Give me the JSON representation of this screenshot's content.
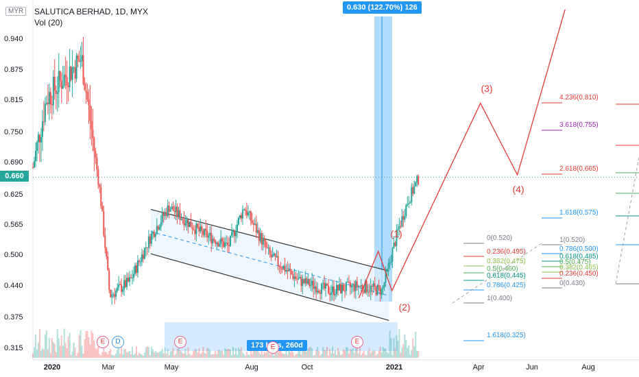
{
  "header": {
    "title": "SALUTICA BERHAD, 1D, MYX",
    "volume_label": "Vol (20)",
    "currency": "MYR"
  },
  "last_price_label": "0.660",
  "colors": {
    "up": "#26a69a",
    "down": "#ef5350",
    "measure": "#2196f3",
    "wave": "#e53935"
  },
  "measure_tag": "0.630 (122.70%) 126",
  "range_tag": "173 bars, 260d",
  "waves": [
    {
      "label": "(1)",
      "x": "2020-12-21",
      "y": 0.505
    },
    {
      "label": "(2)",
      "x": "2021-01-04",
      "y": 0.385
    },
    {
      "label": "(3)",
      "x": "2021-04-05",
      "y": 0.825
    },
    {
      "label": "(4)",
      "x": "2021-05-13",
      "y": 0.615
    }
  ],
  "fib_labels": [
    {
      "text": "4.236(0.810)",
      "color": "#e53935"
    },
    {
      "text": "3.618(0.755)",
      "color": "#9c27b0"
    },
    {
      "text": "2.618(0.665)",
      "color": "#e53935"
    },
    {
      "text": "1.618(0.575)",
      "color": "#2196f3"
    },
    {
      "text": "1.618(0.325)",
      "color": "#2196f3"
    },
    {
      "text": "0(0.520)",
      "color": "#787b86"
    },
    {
      "text": "0.236(0.495)",
      "color": "#e53935"
    },
    {
      "text": "0.382(0.475)",
      "color": "#8bc34a"
    },
    {
      "text": "0.5(0.460)",
      "color": "#4caf50"
    },
    {
      "text": "0.618(0.445)",
      "color": "#009688"
    },
    {
      "text": "0.786(0.425)",
      "color": "#2196f3"
    },
    {
      "text": "1(0.400)",
      "color": "#787b86"
    },
    {
      "text": "1(0.520)",
      "color": "#787b86"
    },
    {
      "text": "0.786(0.500)",
      "color": "#2196f3"
    },
    {
      "text": "0.618(0.485)",
      "color": "#009688"
    },
    {
      "text": "0.5(0.475)",
      "color": "#4caf50"
    },
    {
      "text": "0.382(0.465)",
      "color": "#8bc34a"
    },
    {
      "text": "0.236(0.450)",
      "color": "#e53935"
    },
    {
      "text": "0(0.430)",
      "color": "#787b86"
    }
  ],
  "events": [
    {
      "label": "E",
      "kind": "e",
      "x": "2020-02-20"
    },
    {
      "label": "D",
      "kind": "d",
      "x": "2020-03-05"
    },
    {
      "label": "E",
      "kind": "e",
      "x": "2020-05-20"
    },
    {
      "label": "E",
      "kind": "e",
      "x": "2020-09-15"
    },
    {
      "label": "E",
      "kind": "e",
      "x": "2020-11-20"
    }
  ],
  "chart_data": {
    "type": "candlestick",
    "title": "SALUTICA BERHAD, 1D, MYX",
    "y_ticks": [
      "0.940",
      "0.875",
      "0.815",
      "0.750",
      "0.690",
      "0.625",
      "0.565",
      "0.500",
      "0.440",
      "0.375",
      "0.315"
    ],
    "x_ticks": [
      "2020",
      "Mar",
      "May",
      "Aug",
      "Oct",
      "2021",
      "Apr",
      "Jun",
      "Aug"
    ],
    "ylim": [
      0.29,
      1.0
    ],
    "last_price": 0.66,
    "price_path": [
      {
        "x": "2020-01-01",
        "y": 0.68
      },
      {
        "x": "2020-01-15",
        "y": 0.82
      },
      {
        "x": "2020-02-01",
        "y": 0.86
      },
      {
        "x": "2020-02-20",
        "y": 0.9
      },
      {
        "x": "2020-03-01",
        "y": 0.76
      },
      {
        "x": "2020-03-10",
        "y": 0.63
      },
      {
        "x": "2020-03-20",
        "y": 0.42
      },
      {
        "x": "2020-04-10",
        "y": 0.45
      },
      {
        "x": "2020-05-01",
        "y": 0.54
      },
      {
        "x": "2020-05-20",
        "y": 0.6
      },
      {
        "x": "2020-06-20",
        "y": 0.55
      },
      {
        "x": "2020-07-20",
        "y": 0.52
      },
      {
        "x": "2020-08-05",
        "y": 0.6
      },
      {
        "x": "2020-09-01",
        "y": 0.5
      },
      {
        "x": "2020-10-01",
        "y": 0.45
      },
      {
        "x": "2020-11-01",
        "y": 0.43
      },
      {
        "x": "2020-12-01",
        "y": 0.44
      },
      {
        "x": "2020-12-25",
        "y": 0.43
      },
      {
        "x": "2021-01-10",
        "y": 0.55
      },
      {
        "x": "2021-01-20",
        "y": 0.61
      },
      {
        "x": "2021-02-01",
        "y": 0.66
      }
    ],
    "channel": {
      "upper": [
        {
          "x": "2020-05-01",
          "y": 0.595
        },
        {
          "x": "2021-01-01",
          "y": 0.47
        }
      ],
      "lower": [
        {
          "x": "2020-05-01",
          "y": 0.505
        },
        {
          "x": "2021-01-01",
          "y": 0.37
        }
      ]
    },
    "projection": [
      {
        "x": "2020-12-01",
        "y": 0.415
      },
      {
        "x": "2020-12-21",
        "y": 0.51
      },
      {
        "x": "2021-01-04",
        "y": 0.43
      },
      {
        "x": "2021-04-05",
        "y": 0.81
      },
      {
        "x": "2021-05-13",
        "y": 0.665
      },
      {
        "x": "2021-07-01",
        "y": 1.0
      }
    ]
  }
}
